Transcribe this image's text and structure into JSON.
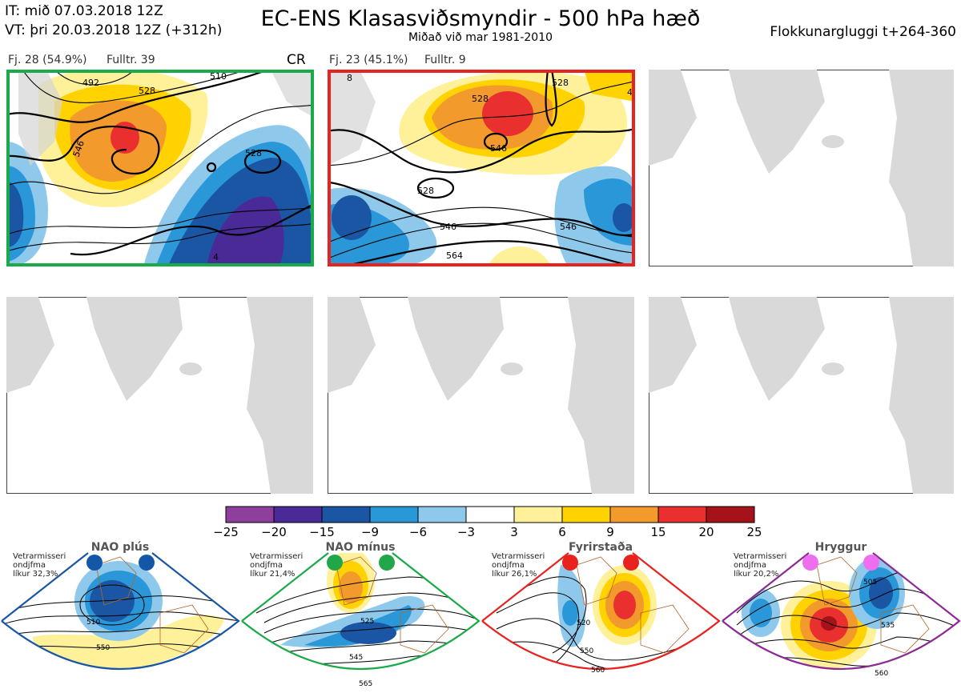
{
  "header": {
    "it": "IT: mið 07.03.2018 12Z",
    "vt": "VT: þri 20.03.2018 12Z  (+312h)",
    "title": "EC-ENS Klasasviðsmyndir - 500 hPa hæð",
    "subtitle": "Miðað við mar 1981-2010",
    "window": "Flokkunargluggi t+264-360"
  },
  "clusters": [
    {
      "label": "Fj. 28 (54.9%)",
      "representative": "Fulltr. 39",
      "regime_code": "CR",
      "frame_color": "#1aaa4a",
      "contour_labels": [
        "528",
        "546",
        "528",
        "492",
        "510",
        "4"
      ]
    },
    {
      "label": "Fj. 23 (45.1%)",
      "representative": "Fulltr. 9",
      "frame_color": "#e8221f",
      "contour_labels": [
        "528",
        "546",
        "528",
        "546",
        "546",
        "564",
        "528",
        "8",
        "4"
      ]
    }
  ],
  "colorbar": {
    "ticks": [
      "−25",
      "−20",
      "−15",
      "−9",
      "−6",
      "−3",
      "3",
      "6",
      "9",
      "15",
      "20",
      "25"
    ],
    "colors": [
      "#8e3e9b",
      "#4a2a96",
      "#1a56a3",
      "#2a98d8",
      "#8ec9ec",
      "#ffffff",
      "#fff19a",
      "#ffd200",
      "#f39a2c",
      "#e9302e",
      "#a6121a"
    ]
  },
  "regimes": [
    {
      "name": "NAO plús",
      "note": [
        "Vetrarmisseri",
        "ondjfma",
        "líkur 32,3%"
      ],
      "color": "#1a56a3",
      "dot_color": "#1457a8",
      "contour_labels": [
        "510",
        "550"
      ]
    },
    {
      "name": "NAO mínus",
      "note": [
        "Vetrarmisseri",
        "ondjfma",
        "líkur 21,4%"
      ],
      "color": "#1aaa4a",
      "dot_color": "#22a64a",
      "contour_labels": [
        "525",
        "545",
        "565"
      ]
    },
    {
      "name": "Fyrirstaða",
      "note": [
        "Vetrarmisseri",
        "ondjfma",
        "líkur 26,1%"
      ],
      "color": "#e8221f",
      "dot_color": "#e8221f",
      "contour_labels": [
        "520",
        "550",
        "560"
      ]
    },
    {
      "name": "Hryggur",
      "note": [
        "Vetrarmisseri",
        "ondjfma",
        "líkur 20,2%"
      ],
      "color": "#8b2a93",
      "dot_color": "#ee6fee",
      "contour_labels": [
        "505",
        "535",
        "560"
      ]
    }
  ]
}
